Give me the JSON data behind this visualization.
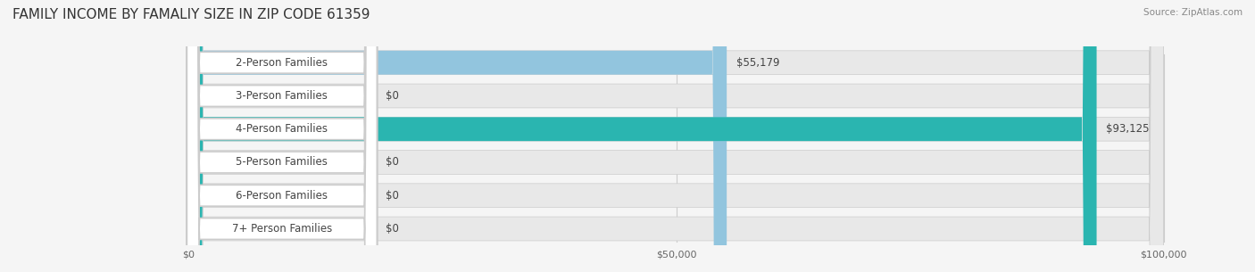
{
  "title": "FAMILY INCOME BY FAMALIY SIZE IN ZIP CODE 61359",
  "source": "Source: ZipAtlas.com",
  "categories": [
    "2-Person Families",
    "3-Person Families",
    "4-Person Families",
    "5-Person Families",
    "6-Person Families",
    "7+ Person Families"
  ],
  "values": [
    55179,
    0,
    93125,
    0,
    0,
    0
  ],
  "bar_colors": [
    "#92c5de",
    "#c9b3d5",
    "#2ab5b0",
    "#b3b3d9",
    "#f4a0b0",
    "#f7c899"
  ],
  "label_colors": [
    "#92c5de",
    "#c9b3d5",
    "#2ab5b0",
    "#b3b3d9",
    "#f48fa0",
    "#f7c899"
  ],
  "value_labels": [
    "$55,179",
    "$0",
    "$93,125",
    "$0",
    "$0",
    "$0"
  ],
  "xmax": 100000,
  "xticks": [
    0,
    50000,
    100000
  ],
  "xtick_labels": [
    "$0",
    "$50,000",
    "$100,000"
  ],
  "background_color": "#f0f0f0",
  "bar_background": "#e8e8e8",
  "title_fontsize": 11,
  "label_fontsize": 8.5,
  "value_fontsize": 8.5,
  "figsize": [
    14.06,
    3.05
  ]
}
